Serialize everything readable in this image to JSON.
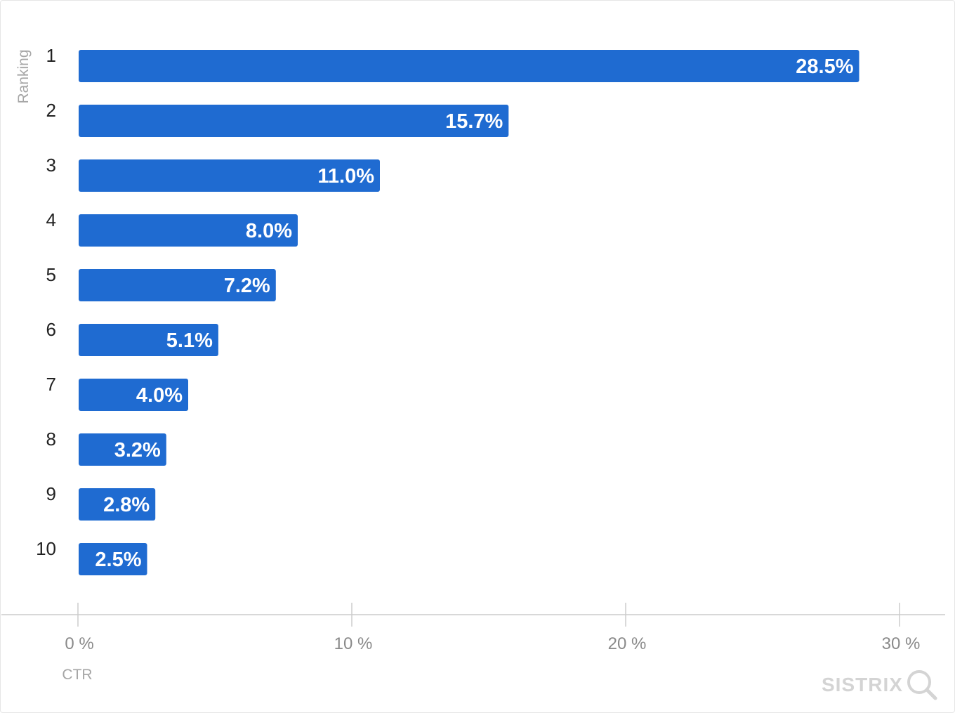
{
  "chart_data": {
    "type": "bar",
    "orientation": "horizontal",
    "categories": [
      "1",
      "2",
      "3",
      "4",
      "5",
      "6",
      "7",
      "8",
      "9",
      "10"
    ],
    "values": [
      28.5,
      15.7,
      11.0,
      8.0,
      7.2,
      5.1,
      4.0,
      3.2,
      2.8,
      2.5
    ],
    "data_labels": [
      "28.5%",
      "15.7%",
      "11.0%",
      "8.0%",
      "7.2%",
      "5.1%",
      "4.0%",
      "3.2%",
      "2.8%",
      "2.5%"
    ],
    "xlabel": "CTR",
    "ylabel": "Ranking",
    "xlim": [
      0,
      30
    ],
    "xticks": [
      0,
      10,
      20,
      30
    ],
    "xtick_labels": [
      "0 %",
      "10 %",
      "20 %",
      "30 %"
    ],
    "grid": false,
    "legend": "none",
    "bar_color": "#1f6bd1"
  },
  "watermark": {
    "text": "SISTRIX",
    "icon": "magnifier-icon",
    "color": "#d4d4d4"
  }
}
